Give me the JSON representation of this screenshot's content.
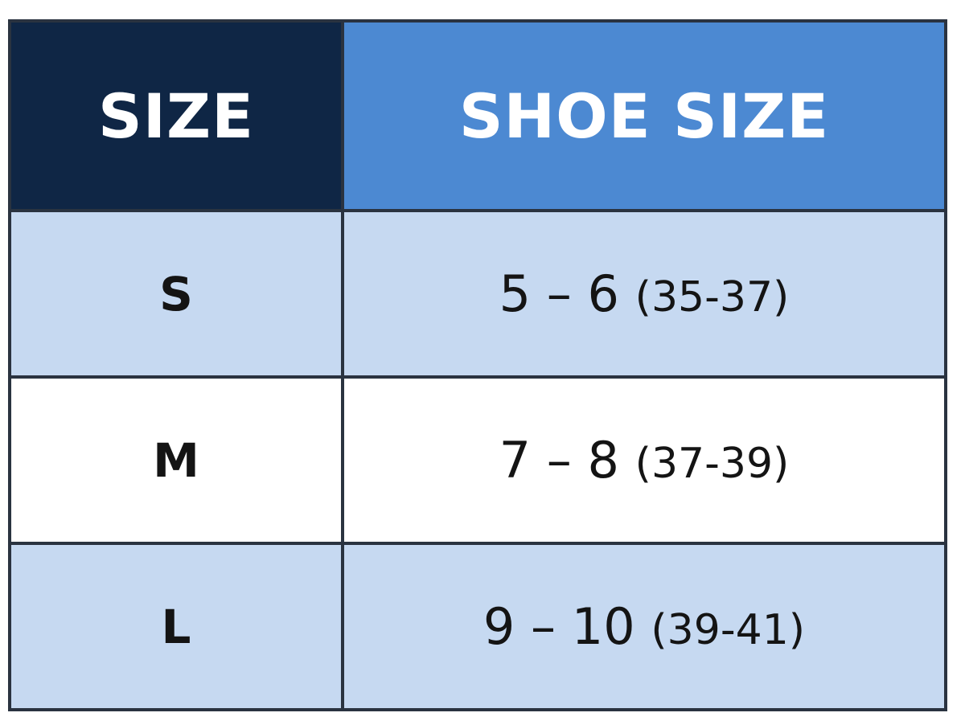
{
  "table": {
    "headers": [
      "SIZE",
      "SHOE SIZE"
    ],
    "rows": [
      {
        "size": "S",
        "us": "5 – 6",
        "eu": "(35-37)"
      },
      {
        "size": "M",
        "us": "7 – 8",
        "eu": "(37-39)"
      },
      {
        "size": "L",
        "us": "9 – 10",
        "eu": "(39-41)"
      }
    ]
  },
  "colors": {
    "header_size_bg": "#0f2645",
    "header_shoe_bg": "#4c89d2",
    "row_alt_bg": "#c6d9f1",
    "row_plain_bg": "#ffffff",
    "border": "#2a3340"
  }
}
